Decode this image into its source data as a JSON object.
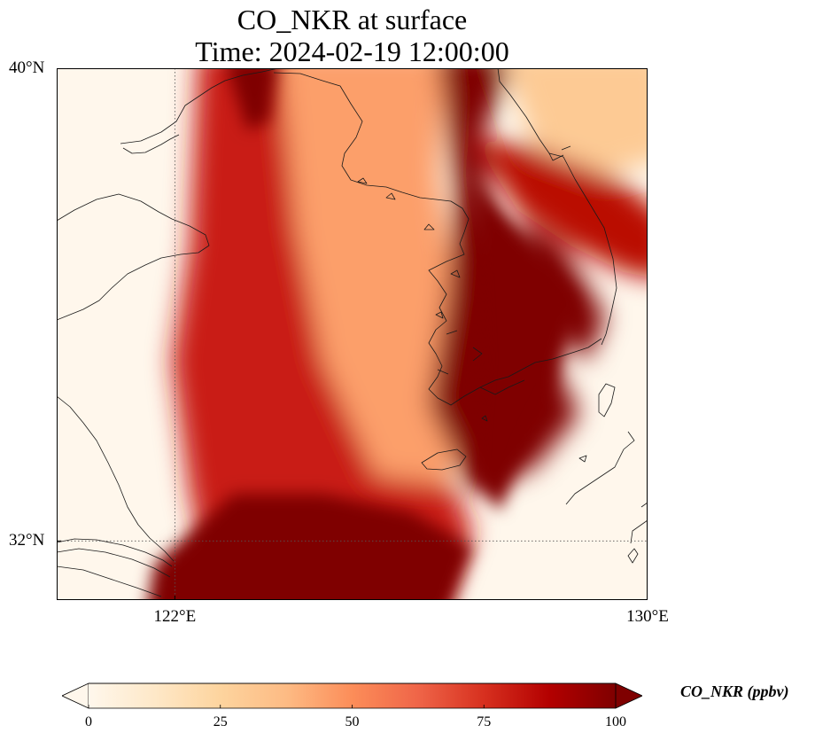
{
  "title": {
    "line1": "CO_NKR at surface",
    "line2": "Time: 2024-02-19 12:00:00"
  },
  "map": {
    "projection": "PlateCarree",
    "lon_range": [
      120,
      130
    ],
    "lat_range": [
      31,
      40
    ],
    "gridlines": "dotted",
    "lon_ticks": [
      {
        "value": 122,
        "label": "122°E"
      },
      {
        "value": 130,
        "label": "130°E"
      }
    ],
    "lat_ticks": [
      {
        "value": 40,
        "label": "40°N"
      },
      {
        "value": 32,
        "label": "32°N"
      }
    ],
    "features": [
      "coastlines"
    ],
    "field": {
      "variable": "CO_NKR",
      "level": "surface",
      "units": "ppbv",
      "bands": [
        {
          "name": "western-plume",
          "level": 80
        },
        {
          "name": "southern-plume",
          "level": 100
        },
        {
          "name": "korea-west-plume",
          "level": 100
        },
        {
          "name": "northeast-plume",
          "level": 85
        },
        {
          "name": "yellow-sea-interior",
          "level": 45
        },
        {
          "name": "korea-interior",
          "level": 30
        }
      ]
    }
  },
  "colorbar": {
    "label": "CO_NKR (ppbv)",
    "cmap": "OrRd",
    "vmin": 0,
    "vmax": 100,
    "extend": "both",
    "ticks": [
      {
        "value": 0,
        "label": "0"
      },
      {
        "value": 25,
        "label": "25"
      },
      {
        "value": 50,
        "label": "50"
      },
      {
        "value": 75,
        "label": "75"
      },
      {
        "value": 100,
        "label": "100"
      }
    ],
    "colors": [
      "#fff7ec",
      "#fee8c8",
      "#fdd49e",
      "#fdbb84",
      "#fc8d59",
      "#ef6548",
      "#d7301f",
      "#b30000",
      "#7f0000"
    ]
  }
}
